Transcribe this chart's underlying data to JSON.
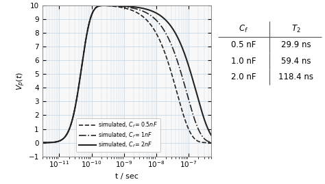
{
  "xlabel": "t / sec",
  "ylabel": "$V_p(t)$",
  "xlim": [
    3e-12,
    5e-07
  ],
  "ylim": [
    -1,
    10
  ],
  "yticks": [
    -1,
    0,
    1,
    2,
    3,
    4,
    5,
    6,
    7,
    8,
    9,
    10
  ],
  "xticks_log": [
    -11,
    -10,
    -9,
    -8,
    -7
  ],
  "grid_color": "#c8d8e8",
  "line_color": "#222222",
  "bg_color": "#f8f8f8",
  "curves": [
    {
      "tau_r": 2.5e-11,
      "tau_f": 4.3e-08,
      "n": 4,
      "label": "simulated, $C_f = 0.5nF$",
      "ls": "--",
      "lw": 1.2
    },
    {
      "tau_r": 2.5e-11,
      "tau_f": 8.6e-08,
      "n": 4,
      "label": "simulated, $C_f = 1nF$",
      "ls": "-.",
      "lw": 1.2
    },
    {
      "tau_r": 2.5e-11,
      "tau_f": 1.72e-07,
      "n": 4,
      "label": "simulated, $C_f = 2nF$",
      "ls": "-",
      "lw": 1.5
    }
  ],
  "table_cf": [
    "0.5 nF",
    "1.0 nF",
    "2.0 nF"
  ],
  "table_T2": [
    "29.9 ns",
    "59.4 ns",
    "118.4 ns"
  ],
  "table_header_cf": "$C_f$",
  "table_header_T2": "$T_2$"
}
